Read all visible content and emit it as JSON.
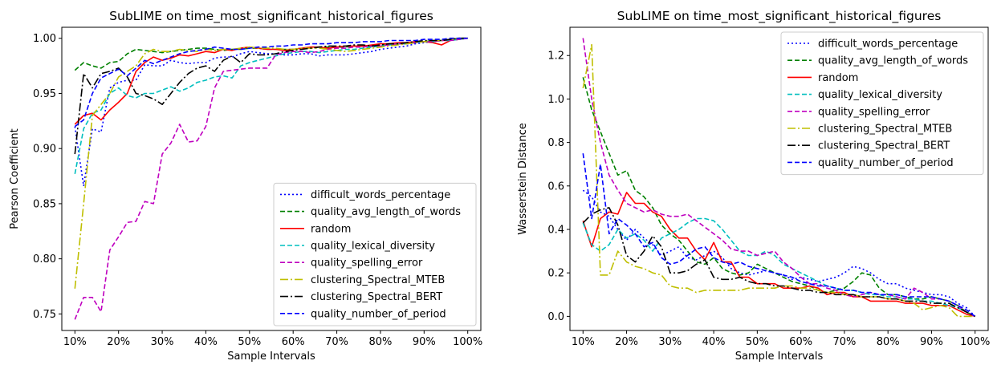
{
  "chart_data": [
    {
      "type": "line",
      "title": "SubLIME on time_most_significant_historical_figures",
      "xlabel": "Sample Intervals",
      "ylabel": "Pearson Coefficient",
      "xlim": [
        7,
        103
      ],
      "ylim": [
        0.735,
        1.01
      ],
      "x_ticks": [
        10,
        20,
        30,
        40,
        50,
        60,
        70,
        80,
        90,
        100
      ],
      "x_tick_labels": [
        "10%",
        "20%",
        "30%",
        "40%",
        "50%",
        "60%",
        "70%",
        "80%",
        "90%",
        "100%"
      ],
      "y_ticks": [
        0.75,
        0.8,
        0.85,
        0.9,
        0.95,
        1.0
      ],
      "y_tick_labels": [
        "0.75",
        "0.80",
        "0.85",
        "0.90",
        "0.95",
        "1.00"
      ],
      "legend_position": "lower-right",
      "x": [
        10,
        12,
        14,
        16,
        18,
        20,
        22,
        24,
        26,
        28,
        30,
        32,
        34,
        36,
        38,
        40,
        42,
        44,
        46,
        48,
        50,
        52,
        54,
        56,
        58,
        60,
        62,
        64,
        66,
        68,
        70,
        72,
        74,
        76,
        78,
        80,
        82,
        84,
        86,
        88,
        90,
        92,
        94,
        96,
        98,
        100
      ],
      "series": [
        {
          "name": "difficult_words_percentage",
          "color": "#0000ff",
          "dash": "2,3",
          "values": [
            0.92,
            0.866,
            0.918,
            0.915,
            0.955,
            0.96,
            0.962,
            0.962,
            0.976,
            0.975,
            0.975,
            0.98,
            0.978,
            0.977,
            0.978,
            0.978,
            0.982,
            0.983,
            0.983,
            0.986,
            0.988,
            0.987,
            0.986,
            0.986,
            0.985,
            0.985,
            0.986,
            0.986,
            0.984,
            0.985,
            0.985,
            0.985,
            0.986,
            0.987,
            0.988,
            0.99,
            0.991,
            0.992,
            0.993,
            0.995,
            0.996,
            0.997,
            0.998,
            0.999,
            1.0,
            1.0
          ]
        },
        {
          "name": "quality_avg_length_of_words",
          "color": "#008000",
          "dash": "6,3",
          "values": [
            0.971,
            0.978,
            0.975,
            0.973,
            0.978,
            0.979,
            0.986,
            0.99,
            0.989,
            0.988,
            0.987,
            0.988,
            0.989,
            0.99,
            0.991,
            0.991,
            0.99,
            0.989,
            0.99,
            0.99,
            0.991,
            0.991,
            0.99,
            0.99,
            0.99,
            0.99,
            0.991,
            0.992,
            0.992,
            0.992,
            0.992,
            0.992,
            0.993,
            0.993,
            0.993,
            0.994,
            0.994,
            0.995,
            0.995,
            0.996,
            0.997,
            0.998,
            0.998,
            0.999,
            1.0,
            1.0
          ]
        },
        {
          "name": "random",
          "color": "#ff0000",
          "dash": "",
          "values": [
            0.922,
            0.93,
            0.932,
            0.926,
            0.935,
            0.942,
            0.95,
            0.97,
            0.978,
            0.983,
            0.98,
            0.982,
            0.985,
            0.984,
            0.986,
            0.988,
            0.987,
            0.99,
            0.989,
            0.991,
            0.992,
            0.991,
            0.99,
            0.99,
            0.989,
            0.99,
            0.991,
            0.992,
            0.992,
            0.991,
            0.992,
            0.993,
            0.993,
            0.993,
            0.994,
            0.995,
            0.995,
            0.996,
            0.996,
            0.997,
            0.997,
            0.996,
            0.994,
            0.998,
            0.999,
            1.0
          ]
        },
        {
          "name": "quality_lexical_diversity",
          "color": "#00bfbf",
          "dash": "6,3",
          "values": [
            0.877,
            0.918,
            0.932,
            0.935,
            0.95,
            0.955,
            0.948,
            0.946,
            0.95,
            0.95,
            0.953,
            0.956,
            0.952,
            0.955,
            0.96,
            0.962,
            0.965,
            0.966,
            0.964,
            0.975,
            0.978,
            0.98,
            0.982,
            0.984,
            0.986,
            0.987,
            0.988,
            0.988,
            0.987,
            0.988,
            0.989,
            0.99,
            0.99,
            0.991,
            0.992,
            0.993,
            0.994,
            0.995,
            0.995,
            0.996,
            0.997,
            0.997,
            0.998,
            0.998,
            0.999,
            1.0
          ]
        },
        {
          "name": "quality_spelling_error",
          "color": "#bf00bf",
          "dash": "6,3",
          "values": [
            0.745,
            0.765,
            0.765,
            0.752,
            0.808,
            0.82,
            0.833,
            0.834,
            0.852,
            0.85,
            0.895,
            0.905,
            0.922,
            0.906,
            0.907,
            0.92,
            0.955,
            0.97,
            0.971,
            0.972,
            0.973,
            0.973,
            0.973,
            0.985,
            0.987,
            0.988,
            0.988,
            0.987,
            0.988,
            0.99,
            0.991,
            0.991,
            0.992,
            0.992,
            0.993,
            0.993,
            0.994,
            0.995,
            0.995,
            0.996,
            0.997,
            0.997,
            0.998,
            0.998,
            0.999,
            1.0
          ]
        },
        {
          "name": "clustering_Spectral_MTEB",
          "color": "#bfbf00",
          "dash": "10,3,2,3",
          "values": [
            0.773,
            0.85,
            0.93,
            0.94,
            0.95,
            0.965,
            0.97,
            0.975,
            0.986,
            0.99,
            0.988,
            0.988,
            0.99,
            0.989,
            0.988,
            0.99,
            0.989,
            0.99,
            0.99,
            0.991,
            0.992,
            0.991,
            0.991,
            0.991,
            0.99,
            0.99,
            0.991,
            0.991,
            0.991,
            0.99,
            0.989,
            0.988,
            0.989,
            0.99,
            0.991,
            0.992,
            0.993,
            0.994,
            0.995,
            0.996,
            0.997,
            0.998,
            0.998,
            0.999,
            1.0,
            1.0
          ]
        },
        {
          "name": "clustering_Spectral_BERT",
          "color": "#000000",
          "dash": "10,3,2,3",
          "values": [
            0.895,
            0.968,
            0.955,
            0.968,
            0.97,
            0.973,
            0.965,
            0.95,
            0.948,
            0.945,
            0.94,
            0.95,
            0.96,
            0.968,
            0.973,
            0.975,
            0.97,
            0.98,
            0.984,
            0.978,
            0.986,
            0.985,
            0.985,
            0.986,
            0.988,
            0.989,
            0.99,
            0.991,
            0.992,
            0.993,
            0.993,
            0.993,
            0.994,
            0.994,
            0.993,
            0.994,
            0.995,
            0.995,
            0.996,
            0.997,
            0.998,
            0.998,
            0.998,
            0.999,
            1.0,
            1.0
          ]
        },
        {
          "name": "quality_number_of_period",
          "color": "#0000ff",
          "dash": "6,3",
          "values": [
            0.92,
            0.926,
            0.95,
            0.964,
            0.968,
            0.972,
            0.966,
            0.973,
            0.98,
            0.977,
            0.98,
            0.983,
            0.986,
            0.988,
            0.989,
            0.99,
            0.992,
            0.991,
            0.99,
            0.99,
            0.991,
            0.992,
            0.992,
            0.993,
            0.993,
            0.994,
            0.994,
            0.995,
            0.995,
            0.995,
            0.996,
            0.996,
            0.996,
            0.997,
            0.997,
            0.997,
            0.998,
            0.998,
            0.998,
            0.998,
            0.999,
            0.999,
            0.999,
            1.0,
            1.0,
            1.0
          ]
        }
      ]
    },
    {
      "type": "line",
      "title": "SubLIME on time_most_significant_historical_figures",
      "xlabel": "Sample Intervals",
      "ylabel": "Wasserstein Distance",
      "xlim": [
        7,
        103
      ],
      "ylim": [
        -0.065,
        1.33
      ],
      "x_ticks": [
        10,
        20,
        30,
        40,
        50,
        60,
        70,
        80,
        90,
        100
      ],
      "x_tick_labels": [
        "10%",
        "20%",
        "30%",
        "40%",
        "50%",
        "60%",
        "70%",
        "80%",
        "90%",
        "100%"
      ],
      "y_ticks": [
        0.0,
        0.2,
        0.4,
        0.6,
        0.8,
        1.0,
        1.2
      ],
      "y_tick_labels": [
        "0.0",
        "0.2",
        "0.4",
        "0.6",
        "0.8",
        "1.0",
        "1.2"
      ],
      "legend_position": "upper-right",
      "x": [
        10,
        12,
        14,
        16,
        18,
        20,
        22,
        24,
        26,
        28,
        30,
        32,
        34,
        36,
        38,
        40,
        42,
        44,
        46,
        48,
        50,
        52,
        54,
        56,
        58,
        60,
        62,
        64,
        66,
        68,
        70,
        72,
        74,
        76,
        78,
        80,
        82,
        84,
        86,
        88,
        90,
        92,
        94,
        96,
        98,
        100
      ],
      "series": [
        {
          "name": "difficult_words_percentage",
          "color": "#0000ff",
          "dash": "2,3",
          "values": [
            0.58,
            0.55,
            0.48,
            0.46,
            0.4,
            0.35,
            0.4,
            0.36,
            0.33,
            0.28,
            0.3,
            0.32,
            0.27,
            0.26,
            0.28,
            0.3,
            0.27,
            0.22,
            0.2,
            0.19,
            0.2,
            0.21,
            0.2,
            0.19,
            0.17,
            0.18,
            0.17,
            0.16,
            0.17,
            0.18,
            0.2,
            0.23,
            0.22,
            0.2,
            0.17,
            0.15,
            0.15,
            0.13,
            0.12,
            0.11,
            0.1,
            0.1,
            0.09,
            0.06,
            0.04,
            0.0
          ]
        },
        {
          "name": "quality_avg_length_of_words",
          "color": "#008000",
          "dash": "6,3",
          "values": [
            1.1,
            0.95,
            0.85,
            0.75,
            0.65,
            0.67,
            0.58,
            0.55,
            0.5,
            0.42,
            0.38,
            0.35,
            0.3,
            0.25,
            0.24,
            0.27,
            0.22,
            0.2,
            0.19,
            0.2,
            0.24,
            0.22,
            0.2,
            0.18,
            0.16,
            0.15,
            0.14,
            0.12,
            0.11,
            0.12,
            0.13,
            0.16,
            0.2,
            0.19,
            0.13,
            0.1,
            0.1,
            0.09,
            0.08,
            0.08,
            0.09,
            0.08,
            0.07,
            0.05,
            0.02,
            0.0
          ]
        },
        {
          "name": "random",
          "color": "#ff0000",
          "dash": "",
          "values": [
            0.44,
            0.32,
            0.45,
            0.48,
            0.47,
            0.57,
            0.52,
            0.52,
            0.48,
            0.46,
            0.4,
            0.36,
            0.36,
            0.3,
            0.26,
            0.34,
            0.25,
            0.25,
            0.18,
            0.18,
            0.15,
            0.15,
            0.15,
            0.13,
            0.13,
            0.13,
            0.14,
            0.13,
            0.1,
            0.11,
            0.11,
            0.09,
            0.09,
            0.07,
            0.07,
            0.07,
            0.07,
            0.06,
            0.06,
            0.06,
            0.05,
            0.05,
            0.05,
            0.03,
            0.01,
            0.0
          ]
        },
        {
          "name": "quality_lexical_diversity",
          "color": "#00bfbf",
          "dash": "6,3",
          "values": [
            0.43,
            0.33,
            0.3,
            0.33,
            0.4,
            0.36,
            0.38,
            0.35,
            0.3,
            0.36,
            0.38,
            0.4,
            0.43,
            0.45,
            0.45,
            0.44,
            0.4,
            0.35,
            0.3,
            0.28,
            0.28,
            0.3,
            0.28,
            0.24,
            0.22,
            0.2,
            0.18,
            0.16,
            0.14,
            0.13,
            0.12,
            0.12,
            0.11,
            0.1,
            0.1,
            0.09,
            0.09,
            0.08,
            0.08,
            0.07,
            0.07,
            0.06,
            0.05,
            0.04,
            0.02,
            0.0
          ]
        },
        {
          "name": "quality_spelling_error",
          "color": "#bf00bf",
          "dash": "6,3",
          "values": [
            1.28,
            1.0,
            0.8,
            0.65,
            0.58,
            0.52,
            0.5,
            0.48,
            0.49,
            0.47,
            0.46,
            0.46,
            0.47,
            0.44,
            0.41,
            0.38,
            0.35,
            0.31,
            0.3,
            0.3,
            0.28,
            0.29,
            0.3,
            0.25,
            0.22,
            0.18,
            0.15,
            0.15,
            0.13,
            0.12,
            0.1,
            0.09,
            0.1,
            0.11,
            0.1,
            0.1,
            0.09,
            0.08,
            0.13,
            0.11,
            0.08,
            0.08,
            0.07,
            0.05,
            0.02,
            0.0
          ]
        },
        {
          "name": "clustering_Spectral_MTEB",
          "color": "#bfbf00",
          "dash": "10,3,2,3",
          "values": [
            1.05,
            1.25,
            0.19,
            0.19,
            0.3,
            0.25,
            0.23,
            0.22,
            0.2,
            0.19,
            0.14,
            0.13,
            0.13,
            0.11,
            0.12,
            0.12,
            0.12,
            0.12,
            0.12,
            0.13,
            0.13,
            0.13,
            0.13,
            0.14,
            0.14,
            0.13,
            0.13,
            0.12,
            0.11,
            0.11,
            0.1,
            0.1,
            0.09,
            0.09,
            0.09,
            0.08,
            0.08,
            0.07,
            0.06,
            0.03,
            0.04,
            0.05,
            0.04,
            0.0,
            0.0,
            0.0
          ]
        },
        {
          "name": "clustering_Spectral_BERT",
          "color": "#000000",
          "dash": "10,3,2,3",
          "values": [
            0.43,
            0.47,
            0.49,
            0.5,
            0.42,
            0.28,
            0.25,
            0.3,
            0.37,
            0.32,
            0.2,
            0.2,
            0.21,
            0.24,
            0.26,
            0.18,
            0.17,
            0.17,
            0.18,
            0.16,
            0.15,
            0.15,
            0.14,
            0.14,
            0.13,
            0.12,
            0.12,
            0.11,
            0.11,
            0.1,
            0.1,
            0.1,
            0.09,
            0.09,
            0.09,
            0.08,
            0.08,
            0.07,
            0.07,
            0.07,
            0.06,
            0.06,
            0.06,
            0.04,
            0.02,
            0.0
          ]
        },
        {
          "name": "quality_number_of_period",
          "color": "#0000ff",
          "dash": "6,3",
          "values": [
            0.75,
            0.45,
            0.7,
            0.38,
            0.45,
            0.42,
            0.38,
            0.32,
            0.34,
            0.27,
            0.24,
            0.25,
            0.28,
            0.31,
            0.32,
            0.27,
            0.25,
            0.24,
            0.25,
            0.23,
            0.22,
            0.21,
            0.2,
            0.19,
            0.18,
            0.16,
            0.15,
            0.14,
            0.14,
            0.13,
            0.12,
            0.12,
            0.11,
            0.11,
            0.1,
            0.1,
            0.1,
            0.09,
            0.09,
            0.09,
            0.09,
            0.08,
            0.07,
            0.05,
            0.03,
            0.0
          ]
        }
      ]
    }
  ]
}
